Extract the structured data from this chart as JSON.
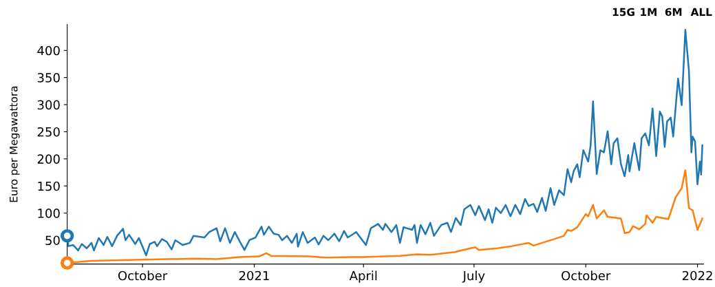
{
  "chart_data": {
    "type": "line",
    "ylabel": "Euro per Megawattora",
    "annotations": [
      "15G",
      "1M",
      "6M",
      "ALL"
    ],
    "xlim": [
      "2020-07-31",
      "2022-01-06"
    ],
    "xticks": [
      {
        "value": "2020-10-01",
        "label": "October"
      },
      {
        "value": "2021-01-01",
        "label": "2021"
      },
      {
        "value": "2021-04-01",
        "label": "April"
      },
      {
        "value": "2021-07-01",
        "label": "July"
      },
      {
        "value": "2021-10-01",
        "label": "October"
      },
      {
        "value": "2022-01-01",
        "label": "2022"
      }
    ],
    "ylim": [
      6,
      448
    ],
    "yticks": [
      50,
      100,
      150,
      200,
      250,
      300,
      350,
      400
    ],
    "grid": false,
    "legend": false,
    "line_style": "solid",
    "series": [
      {
        "type": "scatter",
        "marker": "circle",
        "color": "#1f77b4",
        "x": [
          "2020-07-31"
        ],
        "values": [
          58
        ]
      },
      {
        "type": "scatter",
        "marker": "circle",
        "color": "#ff7f0e",
        "x": [
          "2020-07-31"
        ],
        "values": [
          8
        ]
      },
      {
        "color": "#1f77b4",
        "marker": "none",
        "x": [
          "2020-07-31",
          "2020-08-01",
          "2020-08-05",
          "2020-08-09",
          "2020-08-12",
          "2020-08-16",
          "2020-08-20",
          "2020-08-22",
          "2020-08-26",
          "2020-08-30",
          "2020-09-02",
          "2020-09-06",
          "2020-09-10",
          "2020-09-15",
          "2020-09-17",
          "2020-09-20",
          "2020-09-25",
          "2020-09-28",
          "2020-10-04",
          "2020-10-07",
          "2020-10-11",
          "2020-10-13",
          "2020-10-17",
          "2020-10-21",
          "2020-10-25",
          "2020-10-28",
          "2020-11-03",
          "2020-11-09",
          "2020-11-12",
          "2020-11-21",
          "2020-11-25",
          "2020-12-01",
          "2020-12-04",
          "2020-12-08",
          "2020-12-12",
          "2020-12-16",
          "2020-12-20",
          "2020-12-24",
          "2020-12-28",
          "2021-01-02",
          "2021-01-07",
          "2021-01-09",
          "2021-01-13",
          "2021-01-17",
          "2021-01-21",
          "2021-01-24",
          "2021-01-28",
          "2021-02-01",
          "2021-02-05",
          "2021-02-06",
          "2021-02-10",
          "2021-02-14",
          "2021-02-20",
          "2021-02-23",
          "2021-02-27",
          "2021-03-03",
          "2021-03-08",
          "2021-03-12",
          "2021-03-16",
          "2021-03-19",
          "2021-03-24",
          "2021-03-26",
          "2021-04-03",
          "2021-04-07",
          "2021-04-13",
          "2021-04-17",
          "2021-04-19",
          "2021-04-24",
          "2021-04-28",
          "2021-05-01",
          "2021-05-04",
          "2021-05-11",
          "2021-05-13",
          "2021-05-15",
          "2021-05-18",
          "2021-05-22",
          "2021-05-26",
          "2021-05-29",
          "2021-06-04",
          "2021-06-09",
          "2021-06-12",
          "2021-06-16",
          "2021-06-20",
          "2021-06-23",
          "2021-06-28",
          "2021-07-02",
          "2021-07-05",
          "2021-07-10",
          "2021-07-13",
          "2021-07-16",
          "2021-07-19",
          "2021-07-23",
          "2021-07-27",
          "2021-07-31",
          "2021-08-04",
          "2021-08-08",
          "2021-08-12",
          "2021-08-15",
          "2021-08-19",
          "2021-08-22",
          "2021-08-26",
          "2021-08-29",
          "2021-09-02",
          "2021-09-05",
          "2021-09-09",
          "2021-09-13",
          "2021-09-16",
          "2021-09-19",
          "2021-09-21",
          "2021-09-24",
          "2021-09-26",
          "2021-09-29",
          "2021-10-03",
          "2021-10-05",
          "2021-10-07",
          "2021-10-10",
          "2021-10-13",
          "2021-10-16",
          "2021-10-19",
          "2021-10-22",
          "2021-10-24",
          "2021-10-27",
          "2021-10-30",
          "2021-11-02",
          "2021-11-05",
          "2021-11-06",
          "2021-11-10",
          "2021-11-14",
          "2021-11-16",
          "2021-11-19",
          "2021-11-22",
          "2021-11-25",
          "2021-11-28",
          "2021-12-01",
          "2021-12-03",
          "2021-12-05",
          "2021-12-07",
          "2021-12-10",
          "2021-12-12",
          "2021-12-16",
          "2021-12-19",
          "2021-12-22",
          "2021-12-25",
          "2021-12-27",
          "2021-12-28",
          "2021-12-30",
          "2022-01-01",
          "2022-01-03",
          "2022-01-04",
          "2022-01-05"
        ],
        "values": [
          58,
          39,
          41,
          31,
          43,
          35,
          45,
          31,
          54,
          41,
          56,
          39,
          58,
          71,
          50,
          60,
          43,
          54,
          22,
          43,
          47,
          39,
          52,
          47,
          33,
          50,
          41,
          45,
          58,
          55,
          65,
          72,
          48,
          72,
          45,
          65,
          48,
          32,
          50,
          55,
          75,
          60,
          75,
          62,
          60,
          50,
          58,
          45,
          62,
          38,
          65,
          45,
          55,
          42,
          58,
          50,
          62,
          48,
          67,
          55,
          62,
          65,
          41,
          72,
          80,
          69,
          80,
          65,
          78,
          45,
          74,
          69,
          78,
          45,
          78,
          61,
          82,
          58,
          78,
          82,
          65,
          91,
          78,
          107,
          115,
          96,
          113,
          87,
          107,
          82,
          110,
          100,
          115,
          94,
          115,
          98,
          126,
          113,
          117,
          102,
          128,
          104,
          146,
          115,
          142,
          133,
          181,
          157,
          177,
          190,
          166,
          216,
          195,
          225,
          306,
          172,
          216,
          212,
          251,
          190,
          229,
          238,
          190,
          168,
          207,
          177,
          229,
          179,
          238,
          247,
          225,
          293,
          205,
          287,
          278,
          222,
          269,
          276,
          241,
          348,
          299,
          438,
          361,
          212,
          241,
          232,
          153,
          195,
          171,
          225
        ]
      },
      {
        "color": "#ff7f0e",
        "marker": "none",
        "x": [
          "2020-07-31",
          "2020-08-20",
          "2020-10-01",
          "2020-11-15",
          "2020-12-01",
          "2020-12-20",
          "2021-01-05",
          "2021-01-11",
          "2021-01-15",
          "2021-02-15",
          "2021-03-01",
          "2021-03-25",
          "2021-04-01",
          "2021-05-01",
          "2021-05-15",
          "2021-05-26",
          "2021-06-15",
          "2021-06-28",
          "2021-07-02",
          "2021-07-05",
          "2021-07-20",
          "2021-08-01",
          "2021-08-15",
          "2021-08-19",
          "2021-08-26",
          "2021-09-05",
          "2021-09-13",
          "2021-09-16",
          "2021-09-19",
          "2021-09-24",
          "2021-10-01",
          "2021-10-03",
          "2021-10-07",
          "2021-10-10",
          "2021-10-16",
          "2021-10-19",
          "2021-10-30",
          "2021-11-02",
          "2021-11-06",
          "2021-11-09",
          "2021-11-14",
          "2021-11-19",
          "2021-11-20",
          "2021-11-25",
          "2021-11-28",
          "2021-12-03",
          "2021-12-08",
          "2021-12-10",
          "2021-12-14",
          "2021-12-19",
          "2021-12-22",
          "2021-12-25",
          "2021-12-28",
          "2022-01-01",
          "2022-01-05"
        ],
        "values": [
          8,
          12,
          14,
          16,
          15,
          19,
          20,
          26,
          21,
          20,
          18,
          19,
          19,
          21,
          24,
          23,
          28,
          35,
          37,
          32,
          35,
          39,
          45,
          40,
          45,
          52,
          58,
          69,
          67,
          74,
          98,
          94,
          115,
          90,
          105,
          93,
          90,
          63,
          65,
          76,
          70,
          80,
          96,
          82,
          93,
          91,
          89,
          102,
          129,
          146,
          179,
          109,
          105,
          69,
          90
        ]
      }
    ]
  }
}
